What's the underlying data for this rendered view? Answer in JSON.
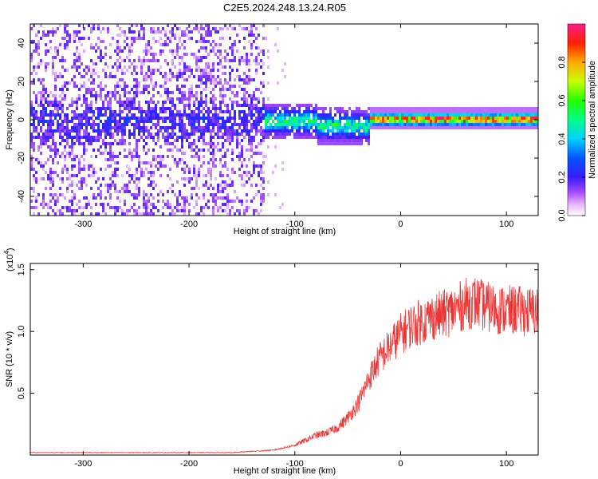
{
  "title": "C2E5.2024.248.13.24.R05",
  "colors": {
    "snr_line": "#ee3333",
    "background": "#ffffff",
    "frame": "#000000"
  },
  "chart_data": [
    {
      "type": "heatmap",
      "xlabel": "Height of straight line (km)",
      "ylabel": "Frequency (Hz)",
      "xlim": [
        -350,
        130
      ],
      "ylim": [
        -50,
        50
      ],
      "xticks": [
        {
          "value": -300,
          "label": "-300"
        },
        {
          "value": -200,
          "label": "-200"
        },
        {
          "value": -100,
          "label": "-100"
        },
        {
          "value": 0,
          "label": "0"
        },
        {
          "value": 100,
          "label": "100"
        }
      ],
      "yticks": [
        {
          "value": -40,
          "label": "-40"
        },
        {
          "value": -20,
          "label": "-20"
        },
        {
          "value": 0,
          "label": "0"
        },
        {
          "value": 20,
          "label": "20"
        },
        {
          "value": 40,
          "label": "40"
        }
      ],
      "colorbar": {
        "label": "Normalized spectral amplitude",
        "range": [
          0,
          1
        ],
        "ticks": [
          {
            "value": 0.0,
            "label": "0.0"
          },
          {
            "value": 0.2,
            "label": "0.2"
          },
          {
            "value": 0.4,
            "label": "0.4"
          },
          {
            "value": 0.6,
            "label": "0.6"
          },
          {
            "value": 0.8,
            "label": "0.8"
          }
        ],
        "colormap": "rainbow: white-violet-blue-cyan-green-yellow-red-magenta"
      }
    },
    {
      "type": "line",
      "xlabel": "Height of straight line (km)",
      "ylabel": "SNR (10 * v/v)",
      "scale_note": "(x10",
      "scale_exp": "4",
      "scale_close": ")",
      "xlim": [
        -350,
        130
      ],
      "ylim": [
        0,
        1.55
      ],
      "xticks": [
        {
          "value": -300,
          "label": "-300"
        },
        {
          "value": -200,
          "label": "-200"
        },
        {
          "value": -100,
          "label": "-100"
        },
        {
          "value": 0,
          "label": "0"
        },
        {
          "value": 100,
          "label": "100"
        }
      ],
      "yticks": [
        {
          "value": 0.5,
          "label": "0.5"
        },
        {
          "value": 1.0,
          "label": "1.0"
        },
        {
          "value": 1.5,
          "label": "1.5"
        }
      ],
      "series": [
        {
          "x": [
            -350,
            -300,
            -250,
            -200,
            -160,
            -140,
            -120,
            -100,
            -90,
            -80,
            -70,
            -60,
            -50,
            -40,
            -30,
            -20,
            -10,
            0,
            10,
            20,
            30,
            40,
            50,
            60,
            70,
            80,
            90,
            100,
            110,
            120,
            130
          ],
          "y": [
            0.02,
            0.02,
            0.02,
            0.02,
            0.02,
            0.03,
            0.04,
            0.08,
            0.12,
            0.16,
            0.18,
            0.22,
            0.3,
            0.42,
            0.62,
            0.78,
            0.88,
            0.98,
            1.05,
            1.08,
            1.12,
            1.14,
            1.17,
            1.22,
            1.24,
            1.2,
            1.18,
            1.17,
            1.17,
            1.16,
            1.16
          ]
        }
      ]
    }
  ]
}
